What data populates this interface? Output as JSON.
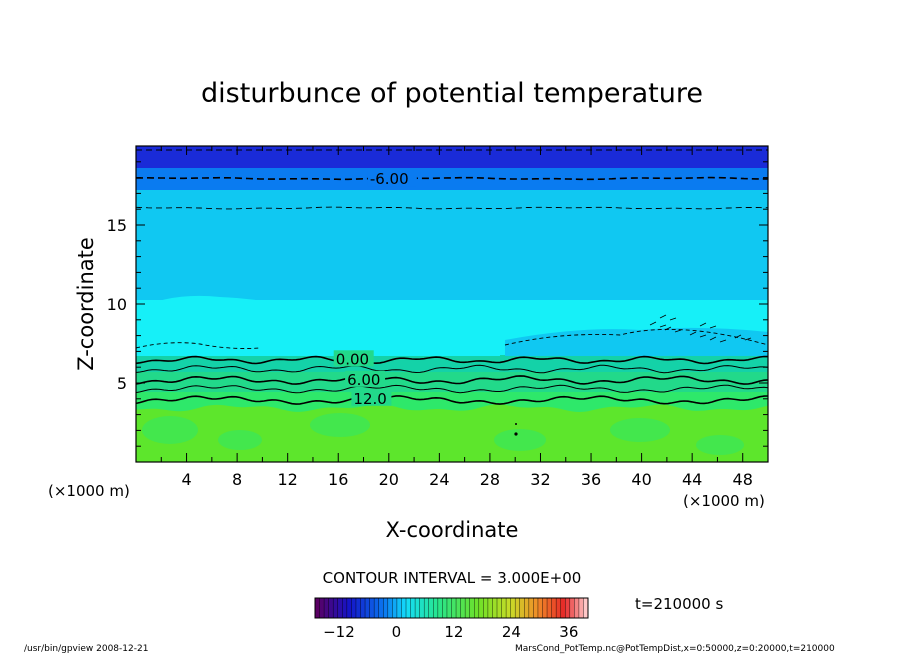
{
  "chart_data": {
    "type": "contour",
    "title": "disturbunce of potential temperature",
    "xlabel": "X-coordinate",
    "ylabel": "Z-coordinate",
    "x_unit_label": "(×1000 m)",
    "z_unit_label": "(×1000 m)",
    "xlim": [
      0,
      50
    ],
    "ylim": [
      0,
      20
    ],
    "x_ticks": [
      4,
      8,
      12,
      16,
      20,
      24,
      28,
      32,
      36,
      40,
      44,
      48
    ],
    "y_ticks": [
      5,
      10,
      15
    ],
    "contour_interval_label": "CONTOUR INTERVAL = 3.000E+00",
    "contour_labels": [
      {
        "text": "-6.00",
        "x": 18.5,
        "z": 17.9
      },
      {
        "text": "0.00",
        "x": 15.8,
        "z": 6.5
      },
      {
        "text": "6.00",
        "x": 16.7,
        "z": 5.2
      },
      {
        "text": "12.0",
        "x": 17.2,
        "z": 4.0
      }
    ],
    "colorbar": {
      "min": -17,
      "max": 40,
      "tick_labels": [
        "−12",
        "0",
        "12",
        "24",
        "36"
      ],
      "tick_values": [
        -12,
        0,
        12,
        24,
        36
      ]
    },
    "time_label": "t=210000 s",
    "footer_left": "/usr/bin/gpview   2008-12-21",
    "footer_right": "MarsCond_PotTemp.nc@PotTempDist,x=0:50000,z=0:20000,t=210000",
    "colors": {
      "top_dark": "#1a2bd8",
      "upper_blue": "#0a7bf0",
      "mid_cyan": "#10c8f2",
      "light_cyan": "#16f0f8",
      "teal": "#14d2a8",
      "green_light": "#22d98a",
      "green": "#2ee86a",
      "lime": "#5de62c"
    }
  }
}
